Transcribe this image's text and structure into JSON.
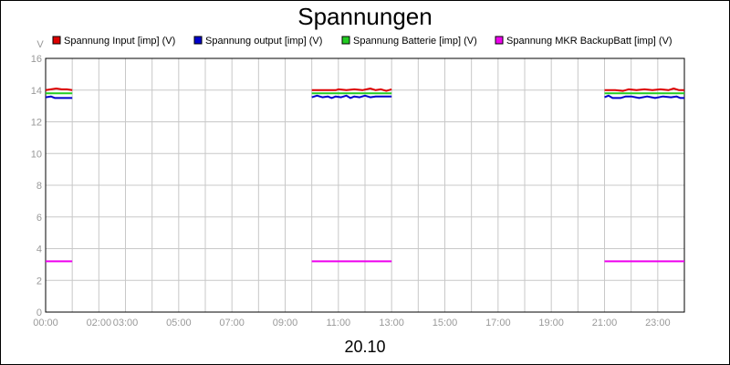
{
  "chart_data": {
    "type": "line",
    "title": "Spannungen",
    "xlabel": "20.10",
    "ylabel": "V",
    "ylim": [
      0,
      16
    ],
    "xlim": [
      0,
      24
    ],
    "yticks": [
      0,
      2,
      4,
      6,
      8,
      10,
      12,
      14,
      16
    ],
    "xticks": [
      {
        "value": 0,
        "label": "00:00"
      },
      {
        "value": 2,
        "label": "02:00"
      },
      {
        "value": 3,
        "label": "03:00"
      },
      {
        "value": 5,
        "label": "05:00"
      },
      {
        "value": 7,
        "label": "07:00"
      },
      {
        "value": 9,
        "label": "09:00"
      },
      {
        "value": 11,
        "label": "11:00"
      },
      {
        "value": 13,
        "label": "13:00"
      },
      {
        "value": 15,
        "label": "15:00"
      },
      {
        "value": 17,
        "label": "17:00"
      },
      {
        "value": 19,
        "label": "19:00"
      },
      {
        "value": 21,
        "label": "21:00"
      },
      {
        "value": 23,
        "label": "23:00"
      }
    ],
    "grid": true,
    "legend_position": "top",
    "series": [
      {
        "name": "Spannung Input [imp] (V)",
        "color": "#dd0000",
        "segments": [
          [
            [
              0.0,
              14.0
            ],
            [
              0.2,
              14.05
            ],
            [
              0.4,
              14.1
            ],
            [
              0.6,
              14.05
            ],
            [
              0.8,
              14.05
            ],
            [
              1.0,
              14.0
            ]
          ],
          [
            [
              10.0,
              14.0
            ],
            [
              10.3,
              14.0
            ],
            [
              10.6,
              14.0
            ],
            [
              10.9,
              14.0
            ],
            [
              11.0,
              14.05
            ],
            [
              11.3,
              14.0
            ],
            [
              11.6,
              14.05
            ],
            [
              11.9,
              14.0
            ],
            [
              12.2,
              14.1
            ],
            [
              12.4,
              14.0
            ],
            [
              12.6,
              14.05
            ],
            [
              12.8,
              13.95
            ],
            [
              13.0,
              14.05
            ]
          ],
          [
            [
              21.0,
              14.0
            ],
            [
              21.4,
              14.0
            ],
            [
              21.7,
              13.95
            ],
            [
              21.9,
              14.05
            ],
            [
              22.2,
              14.0
            ],
            [
              22.5,
              14.05
            ],
            [
              22.8,
              14.0
            ],
            [
              23.1,
              14.05
            ],
            [
              23.4,
              14.0
            ],
            [
              23.6,
              14.1
            ],
            [
              23.8,
              14.0
            ],
            [
              24.0,
              14.0
            ]
          ]
        ]
      },
      {
        "name": "Spannung output [imp] (V)",
        "color": "#0000cc",
        "segments": [
          [
            [
              0.0,
              13.55
            ],
            [
              0.2,
              13.6
            ],
            [
              0.35,
              13.5
            ],
            [
              0.6,
              13.5
            ],
            [
              0.8,
              13.5
            ],
            [
              1.0,
              13.5
            ]
          ],
          [
            [
              10.0,
              13.55
            ],
            [
              10.2,
              13.65
            ],
            [
              10.4,
              13.55
            ],
            [
              10.6,
              13.6
            ],
            [
              10.75,
              13.5
            ],
            [
              10.9,
              13.6
            ],
            [
              11.1,
              13.55
            ],
            [
              11.3,
              13.65
            ],
            [
              11.45,
              13.5
            ],
            [
              11.6,
              13.6
            ],
            [
              11.8,
              13.55
            ],
            [
              12.0,
              13.65
            ],
            [
              12.2,
              13.55
            ],
            [
              12.4,
              13.6
            ],
            [
              12.6,
              13.6
            ],
            [
              12.8,
              13.6
            ],
            [
              13.0,
              13.6
            ]
          ],
          [
            [
              21.0,
              13.55
            ],
            [
              21.15,
              13.65
            ],
            [
              21.3,
              13.5
            ],
            [
              21.6,
              13.5
            ],
            [
              21.8,
              13.6
            ],
            [
              22.0,
              13.6
            ],
            [
              22.3,
              13.5
            ],
            [
              22.6,
              13.6
            ],
            [
              22.9,
              13.5
            ],
            [
              23.2,
              13.6
            ],
            [
              23.5,
              13.55
            ],
            [
              23.7,
              13.6
            ],
            [
              23.85,
              13.5
            ],
            [
              24.0,
              13.5
            ]
          ]
        ]
      },
      {
        "name": "Spannung Batterie [imp] (V)",
        "color": "#22cc22",
        "segments": [
          [
            [
              0.0,
              13.8
            ],
            [
              1.0,
              13.8
            ]
          ],
          [
            [
              10.0,
              13.8
            ],
            [
              13.0,
              13.8
            ]
          ],
          [
            [
              21.0,
              13.8
            ],
            [
              24.0,
              13.8
            ]
          ]
        ]
      },
      {
        "name": "Spannung MKR BackupBatt [imp] (V)",
        "color": "#ee00ee",
        "segments": [
          [
            [
              0.0,
              3.2
            ],
            [
              1.0,
              3.2
            ]
          ],
          [
            [
              10.0,
              3.2
            ],
            [
              13.0,
              3.2
            ]
          ],
          [
            [
              21.0,
              3.2
            ],
            [
              24.0,
              3.2
            ]
          ]
        ]
      }
    ]
  }
}
